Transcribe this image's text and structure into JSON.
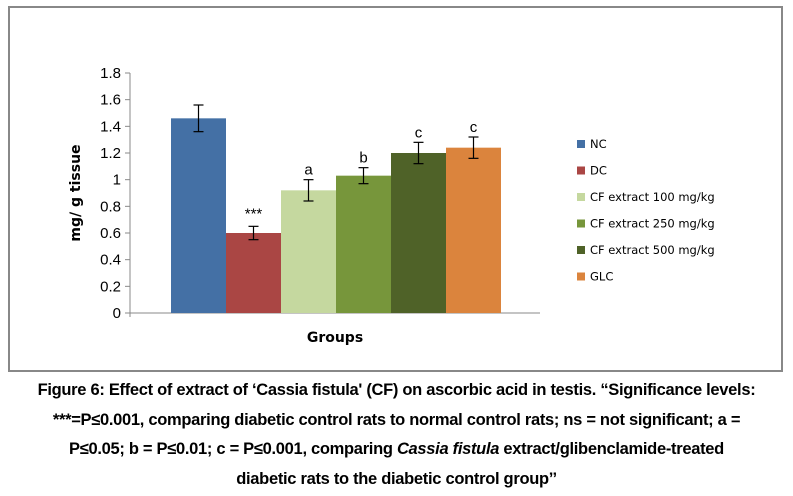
{
  "chart_data": {
    "type": "bar",
    "title": "",
    "xlabel": "Groups",
    "ylabel": "mg/ g tissue",
    "ylim": [
      0,
      1.8
    ],
    "yticks": [
      "0",
      "0.2",
      "0.4",
      "0.6",
      "0.8",
      "1",
      "1.2",
      "1.4",
      "1.6",
      "1.8"
    ],
    "grid": false,
    "legend_position": "right",
    "series": [
      {
        "name": "NC",
        "value": 1.46,
        "error": 0.1,
        "annotation": "",
        "color": "#4470A5"
      },
      {
        "name": "DC",
        "value": 0.6,
        "error": 0.05,
        "annotation": "***",
        "color": "#AA4644"
      },
      {
        "name": "CF extract 100 mg/kg",
        "value": 0.92,
        "error": 0.08,
        "annotation": "a",
        "color": "#C5D89F"
      },
      {
        "name": "CF extract 250 mg/kg",
        "value": 1.03,
        "error": 0.06,
        "annotation": "b",
        "color": "#77963B"
      },
      {
        "name": "CF extract 500 mg/kg",
        "value": 1.2,
        "error": 0.08,
        "annotation": "c",
        "color": "#4F6228"
      },
      {
        "name": "GLC",
        "value": 1.24,
        "error": 0.08,
        "annotation": "c",
        "color": "#DB843D"
      }
    ]
  },
  "caption": {
    "line1": "Figure 6: Effect of extract of ‘Cassia fistula' (CF) on ascorbic acid in testis. “Significance levels:",
    "line2": "***=P≤0.001, comparing diabetic control rats to normal control rats; ns = not significant; a =",
    "line3a": "P≤0.05; b = P≤0.01; c = P≤0.001, comparing ",
    "line3b": "Cassia fistula",
    "line3c": " extract/glibenclamide-treated",
    "line4": "diabetic rats to the diabetic control group’’"
  }
}
